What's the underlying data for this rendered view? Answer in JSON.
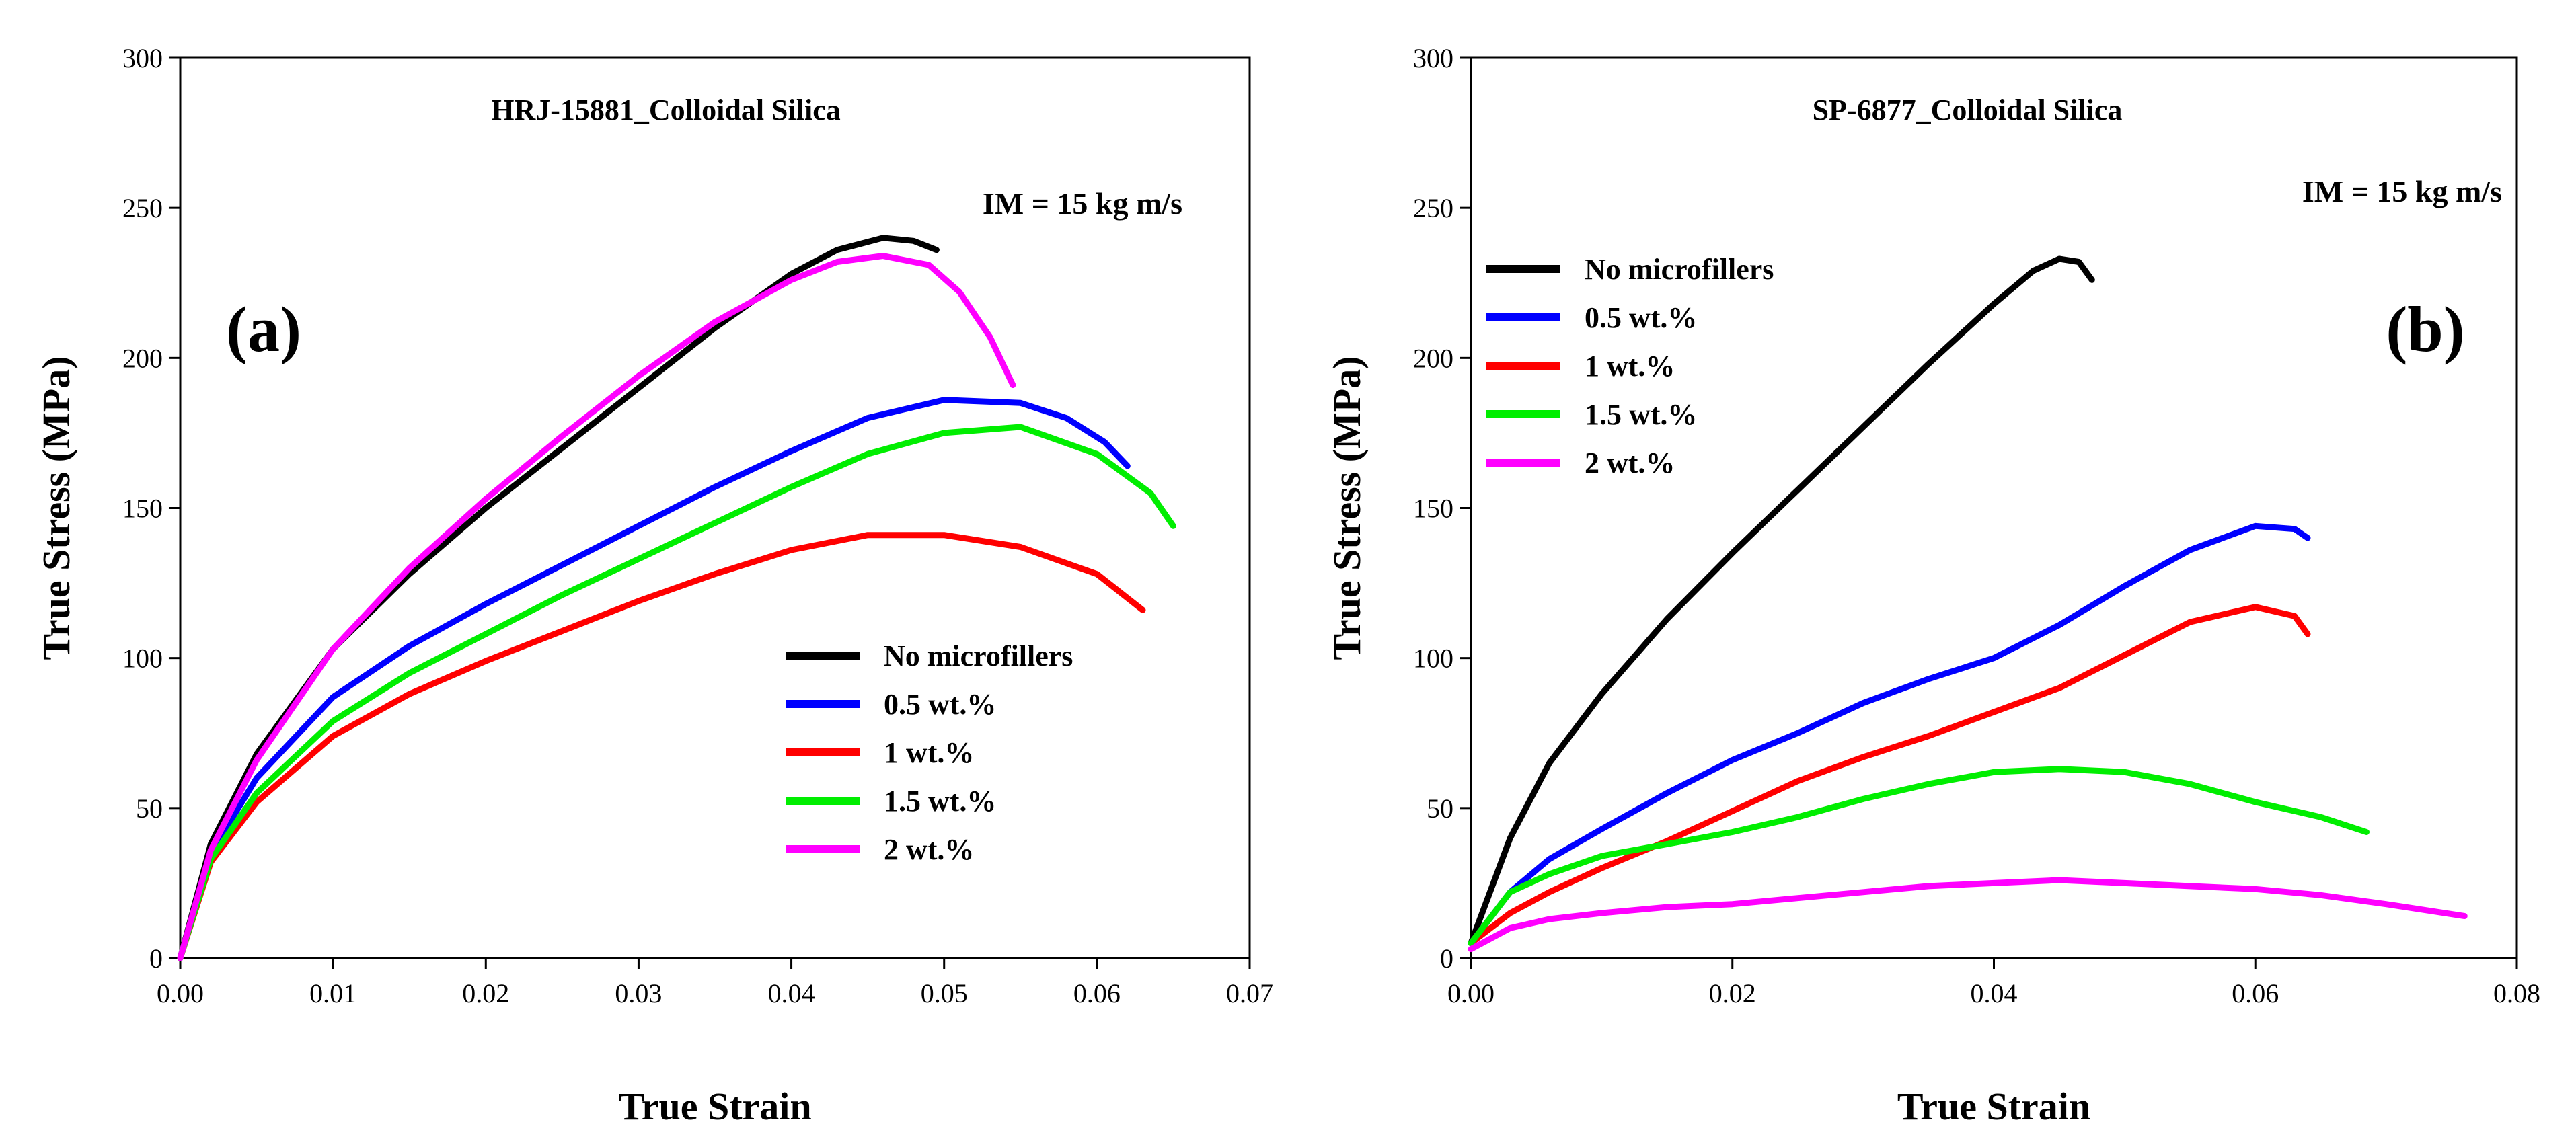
{
  "chart_data": [
    {
      "type": "line",
      "panel": "(a)",
      "title": "HRJ-15881_Colloidal Silica",
      "annotation": "IM = 15 kg m/s",
      "xlabel": "True Strain",
      "ylabel": "True Stress (MPa)",
      "xlim": [
        0,
        0.07
      ],
      "ylim": [
        0,
        300
      ],
      "xticks": [
        "0.00",
        "0.01",
        "0.02",
        "0.03",
        "0.04",
        "0.05",
        "0.06",
        "0.07"
      ],
      "yticks": [
        "0",
        "50",
        "100",
        "150",
        "200",
        "250",
        "300"
      ],
      "legend_position": "lower-center",
      "series": [
        {
          "name": "No microfillers",
          "color": "#000000",
          "x": [
            0,
            0.002,
            0.005,
            0.01,
            0.015,
            0.02,
            0.025,
            0.03,
            0.035,
            0.04,
            0.043,
            0.046,
            0.048,
            0.0495
          ],
          "y": [
            0,
            38,
            68,
            103,
            128,
            150,
            170,
            190,
            210,
            228,
            236,
            240,
            239,
            236
          ]
        },
        {
          "name": "0.5 wt.%",
          "color": "#0000ff",
          "x": [
            0,
            0.002,
            0.005,
            0.01,
            0.015,
            0.02,
            0.025,
            0.03,
            0.035,
            0.04,
            0.045,
            0.05,
            0.055,
            0.058,
            0.0605,
            0.062
          ],
          "y": [
            0,
            35,
            60,
            87,
            104,
            118,
            131,
            144,
            157,
            169,
            180,
            186,
            185,
            180,
            172,
            164
          ]
        },
        {
          "name": "1 wt.%",
          "color": "#ff0000",
          "x": [
            0,
            0.002,
            0.005,
            0.01,
            0.015,
            0.02,
            0.025,
            0.03,
            0.035,
            0.04,
            0.045,
            0.05,
            0.055,
            0.06,
            0.063
          ],
          "y": [
            0,
            32,
            52,
            74,
            88,
            99,
            109,
            119,
            128,
            136,
            141,
            141,
            137,
            128,
            116
          ]
        },
        {
          "name": "1.5 wt.%",
          "color": "#00ee00",
          "x": [
            0,
            0.002,
            0.005,
            0.01,
            0.015,
            0.02,
            0.025,
            0.03,
            0.035,
            0.04,
            0.045,
            0.05,
            0.055,
            0.06,
            0.0635,
            0.065
          ],
          "y": [
            0,
            33,
            55,
            79,
            95,
            108,
            121,
            133,
            145,
            157,
            168,
            175,
            177,
            168,
            155,
            144
          ]
        },
        {
          "name": "2 wt.%",
          "color": "#ff00ff",
          "x": [
            0,
            0.002,
            0.005,
            0.01,
            0.015,
            0.02,
            0.025,
            0.03,
            0.035,
            0.04,
            0.043,
            0.046,
            0.049,
            0.051,
            0.053,
            0.0545
          ],
          "y": [
            0,
            36,
            66,
            103,
            130,
            153,
            174,
            194,
            212,
            226,
            232,
            234,
            231,
            222,
            207,
            191
          ]
        }
      ]
    },
    {
      "type": "line",
      "panel": "(b)",
      "title": "SP-6877_Colloidal Silica",
      "annotation": "IM = 15 kg m/s",
      "xlabel": "True Strain",
      "ylabel": "True Stress (MPa)",
      "xlim": [
        0,
        0.08
      ],
      "ylim": [
        0,
        300
      ],
      "xticks": [
        "0.00",
        "0.02",
        "0.04",
        "0.06",
        "0.08"
      ],
      "yticks": [
        "0",
        "50",
        "100",
        "150",
        "200",
        "250",
        "300"
      ],
      "legend_position": "upper-left",
      "series": [
        {
          "name": "No microfillers",
          "color": "#000000",
          "x": [
            0,
            0.003,
            0.006,
            0.01,
            0.015,
            0.02,
            0.025,
            0.03,
            0.035,
            0.04,
            0.043,
            0.045,
            0.0465,
            0.0475
          ],
          "y": [
            5,
            40,
            65,
            88,
            113,
            135,
            156,
            177,
            198,
            218,
            229,
            233,
            232,
            226
          ]
        },
        {
          "name": "0.5 wt.%",
          "color": "#0000ff",
          "x": [
            0,
            0.003,
            0.006,
            0.01,
            0.015,
            0.02,
            0.025,
            0.03,
            0.035,
            0.04,
            0.045,
            0.05,
            0.055,
            0.06,
            0.063,
            0.064
          ],
          "y": [
            5,
            22,
            33,
            43,
            55,
            66,
            75,
            85,
            93,
            100,
            111,
            124,
            136,
            144,
            143,
            140
          ]
        },
        {
          "name": "1 wt.%",
          "color": "#ff0000",
          "x": [
            0,
            0.003,
            0.006,
            0.01,
            0.015,
            0.02,
            0.025,
            0.03,
            0.035,
            0.04,
            0.045,
            0.05,
            0.055,
            0.06,
            0.063,
            0.064
          ],
          "y": [
            5,
            15,
            22,
            30,
            39,
            49,
            59,
            67,
            74,
            82,
            90,
            101,
            112,
            117,
            114,
            108
          ]
        },
        {
          "name": "1.5 wt.%",
          "color": "#00ee00",
          "x": [
            0,
            0.003,
            0.006,
            0.01,
            0.015,
            0.02,
            0.025,
            0.03,
            0.035,
            0.04,
            0.045,
            0.05,
            0.055,
            0.06,
            0.065,
            0.0685
          ],
          "y": [
            5,
            22,
            28,
            34,
            38,
            42,
            47,
            53,
            58,
            62,
            63,
            62,
            58,
            52,
            47,
            42
          ]
        },
        {
          "name": "2 wt.%",
          "color": "#ff00ff",
          "x": [
            0,
            0.003,
            0.006,
            0.01,
            0.015,
            0.02,
            0.025,
            0.03,
            0.035,
            0.04,
            0.045,
            0.05,
            0.055,
            0.06,
            0.065,
            0.07,
            0.076
          ],
          "y": [
            3,
            10,
            13,
            15,
            17,
            18,
            20,
            22,
            24,
            25,
            26,
            25,
            24,
            23,
            21,
            18,
            14
          ]
        }
      ]
    }
  ]
}
